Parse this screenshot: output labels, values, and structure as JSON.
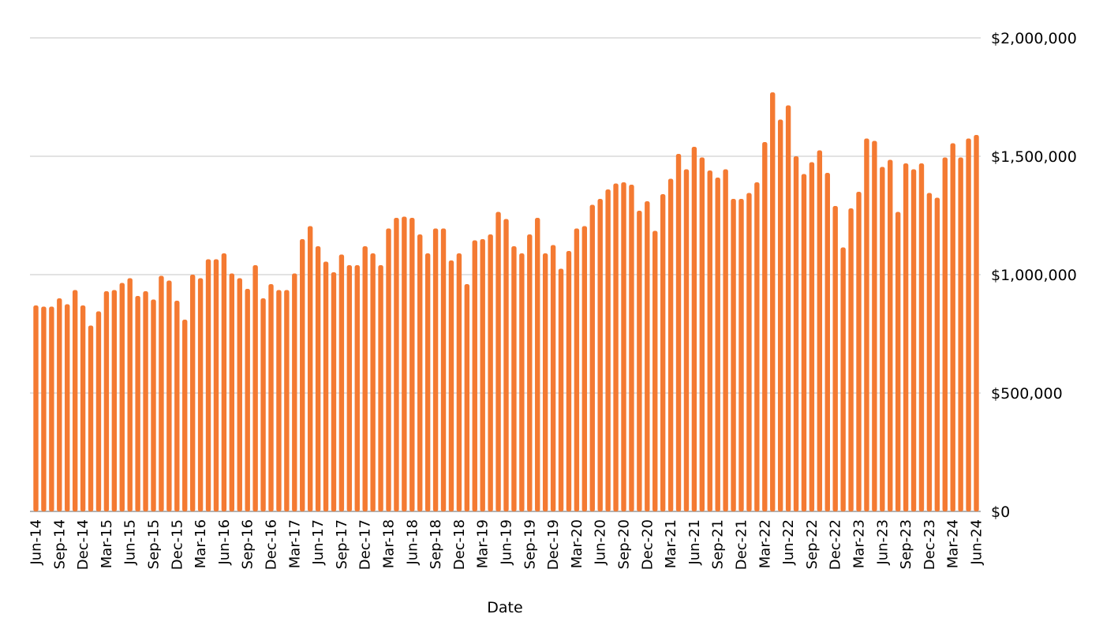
{
  "chart_data": {
    "type": "bar",
    "title": "",
    "xlabel": "Date",
    "ylabel": "",
    "ylim": [
      0,
      2000000
    ],
    "y_ticks": [
      0,
      500000,
      1000000,
      1500000,
      2000000
    ],
    "y_tick_labels": [
      "$0",
      "$500,000",
      "$1,000,000",
      "$1,500,000",
      "$2,000,000"
    ],
    "y_axis_side": "right",
    "grid": true,
    "legend": "none",
    "bar_color": "#f47a32",
    "grid_color": "#d0d0d0",
    "x_tick_labels": [
      "Jun-14",
      "Sep-14",
      "Dec-14",
      "Mar-15",
      "Jun-15",
      "Sep-15",
      "Dec-15",
      "Mar-16",
      "Jun-16",
      "Sep-16",
      "Dec-16",
      "Mar-17",
      "Jun-17",
      "Sep-17",
      "Dec-17",
      "Mar-18",
      "Jun-18",
      "Sep-18",
      "Dec-18",
      "Mar-19",
      "Jun-19",
      "Sep-19",
      "Dec-19",
      "Mar-20",
      "Jun-20",
      "Sep-20",
      "Dec-20",
      "Mar-21",
      "Jun-21",
      "Sep-21",
      "Dec-21",
      "Mar-22",
      "Jun-22",
      "Sep-22",
      "Dec-22",
      "Mar-23",
      "Jun-23",
      "Sep-23",
      "Dec-23",
      "Mar-24",
      "Jun-24"
    ],
    "categories": [
      "Jun-14",
      "Jul-14",
      "Aug-14",
      "Sep-14",
      "Oct-14",
      "Nov-14",
      "Dec-14",
      "Jan-15",
      "Feb-15",
      "Mar-15",
      "Apr-15",
      "May-15",
      "Jun-15",
      "Jul-15",
      "Aug-15",
      "Sep-15",
      "Oct-15",
      "Nov-15",
      "Dec-15",
      "Jan-16",
      "Feb-16",
      "Mar-16",
      "Apr-16",
      "May-16",
      "Jun-16",
      "Jul-16",
      "Aug-16",
      "Sep-16",
      "Oct-16",
      "Nov-16",
      "Dec-16",
      "Jan-17",
      "Feb-17",
      "Mar-17",
      "Apr-17",
      "May-17",
      "Jun-17",
      "Jul-17",
      "Aug-17",
      "Sep-17",
      "Oct-17",
      "Nov-17",
      "Dec-17",
      "Jan-18",
      "Feb-18",
      "Mar-18",
      "Apr-18",
      "May-18",
      "Jun-18",
      "Jul-18",
      "Aug-18",
      "Sep-18",
      "Oct-18",
      "Nov-18",
      "Dec-18",
      "Jan-19",
      "Feb-19",
      "Mar-19",
      "Apr-19",
      "May-19",
      "Jun-19",
      "Jul-19",
      "Aug-19",
      "Sep-19",
      "Oct-19",
      "Nov-19",
      "Dec-19",
      "Jan-20",
      "Feb-20",
      "Mar-20",
      "Apr-20",
      "May-20",
      "Jun-20",
      "Jul-20",
      "Aug-20",
      "Sep-20",
      "Oct-20",
      "Nov-20",
      "Dec-20",
      "Jan-21",
      "Feb-21",
      "Mar-21",
      "Apr-21",
      "May-21",
      "Jun-21",
      "Jul-21",
      "Aug-21",
      "Sep-21",
      "Oct-21",
      "Nov-21",
      "Dec-21",
      "Jan-22",
      "Feb-22",
      "Mar-22",
      "Apr-22",
      "May-22",
      "Jun-22",
      "Jul-22",
      "Aug-22",
      "Sep-22",
      "Oct-22",
      "Nov-22",
      "Dec-22",
      "Jan-23",
      "Feb-23",
      "Mar-23",
      "Apr-23",
      "May-23",
      "Jun-23",
      "Jul-23",
      "Aug-23",
      "Sep-23",
      "Oct-23",
      "Nov-23",
      "Dec-23",
      "Jan-24",
      "Feb-24",
      "Mar-24",
      "Apr-24",
      "May-24",
      "Jun-24"
    ],
    "values": [
      870000,
      865000,
      865000,
      900000,
      875000,
      935000,
      870000,
      785000,
      845000,
      930000,
      935000,
      965000,
      985000,
      910000,
      930000,
      895000,
      995000,
      975000,
      890000,
      810000,
      1000000,
      985000,
      1065000,
      1065000,
      1090000,
      1005000,
      985000,
      940000,
      1040000,
      900000,
      960000,
      935000,
      935000,
      1005000,
      1150000,
      1205000,
      1120000,
      1055000,
      1010000,
      1085000,
      1040000,
      1040000,
      1120000,
      1090000,
      1040000,
      1195000,
      1240000,
      1245000,
      1240000,
      1170000,
      1090000,
      1195000,
      1195000,
      1060000,
      1090000,
      960000,
      1145000,
      1150000,
      1170000,
      1265000,
      1235000,
      1120000,
      1090000,
      1170000,
      1240000,
      1090000,
      1125000,
      1025000,
      1100000,
      1195000,
      1205000,
      1295000,
      1320000,
      1360000,
      1385000,
      1390000,
      1380000,
      1270000,
      1310000,
      1185000,
      1340000,
      1405000,
      1510000,
      1445000,
      1540000,
      1495000,
      1440000,
      1410000,
      1445000,
      1320000,
      1320000,
      1345000,
      1390000,
      1560000,
      1770000,
      1655000,
      1715000,
      1500000,
      1425000,
      1475000,
      1525000,
      1430000,
      1290000,
      1115000,
      1280000,
      1350000,
      1575000,
      1565000,
      1455000,
      1485000,
      1265000,
      1470000,
      1445000,
      1470000,
      1345000,
      1325000,
      1495000,
      1555000,
      1495000,
      1575000,
      1590000
    ]
  }
}
